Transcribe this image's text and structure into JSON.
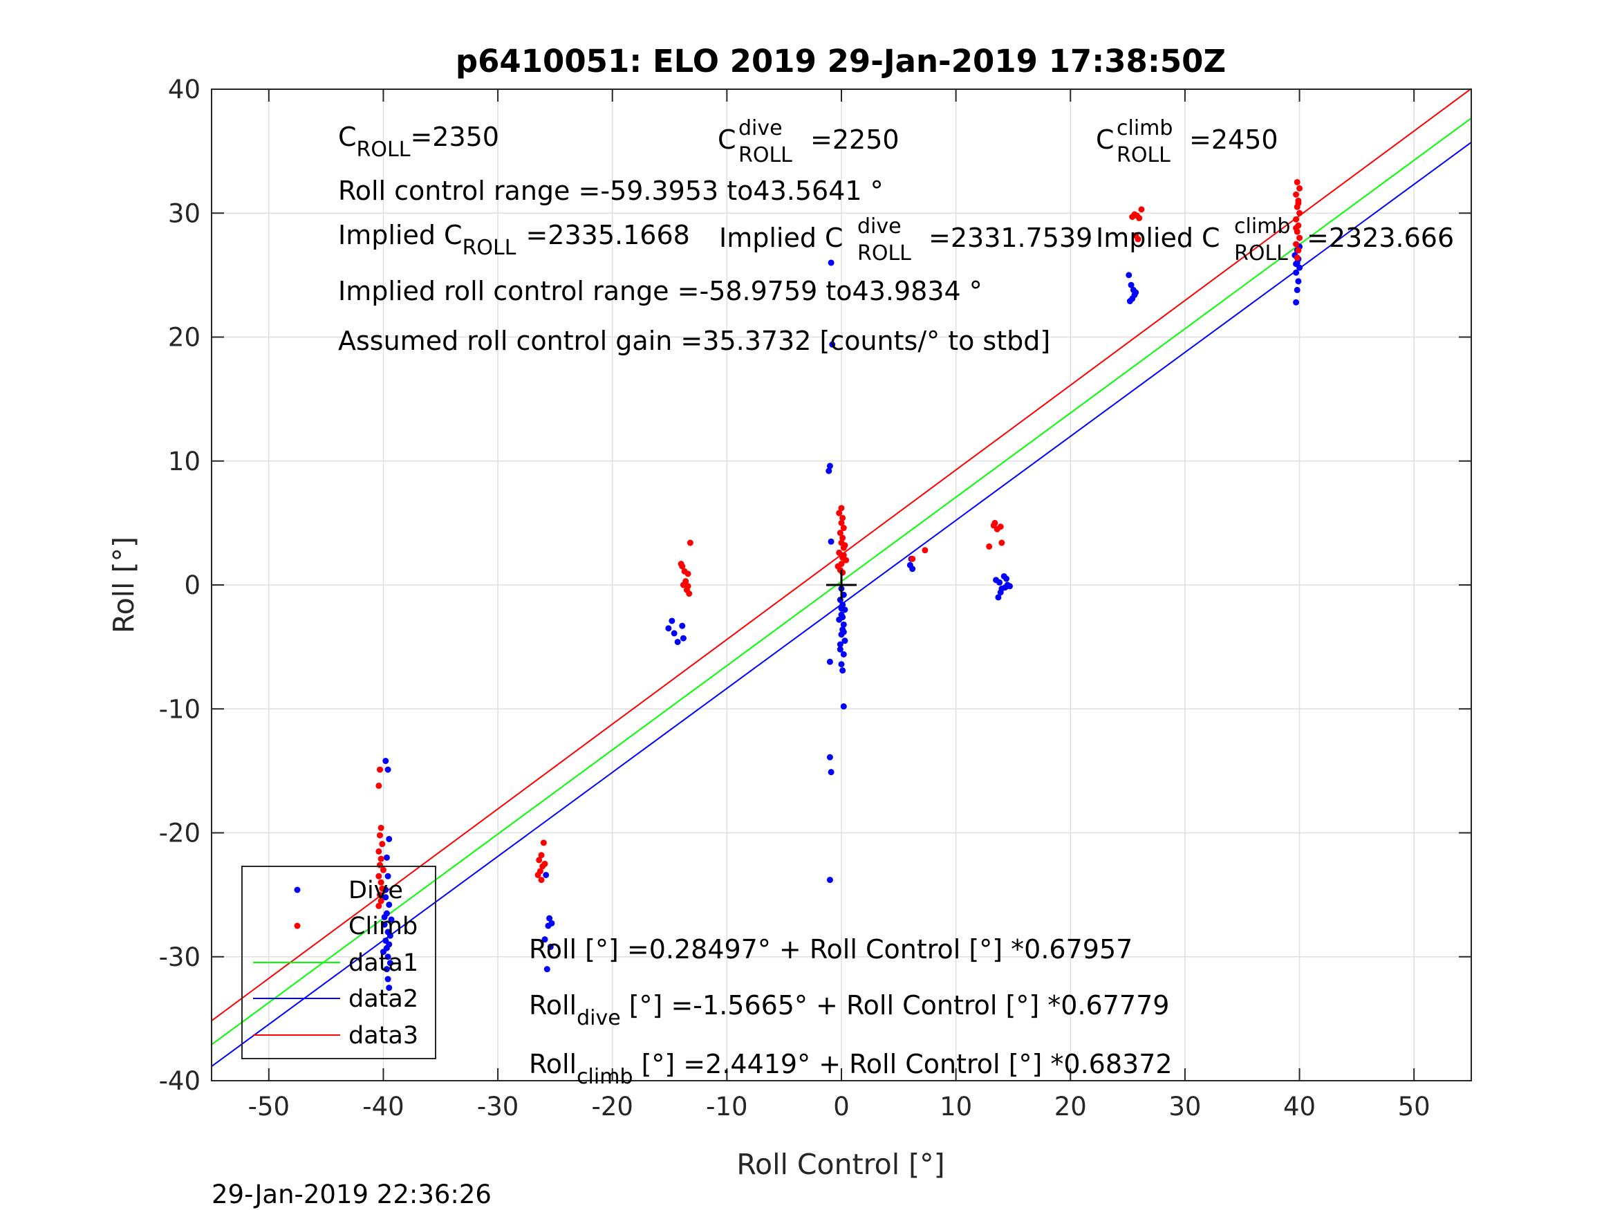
{
  "chart_data": {
    "type": "scatter",
    "title": "p6410051: ELO 2019 29-Jan-2019 17:38:50Z",
    "xlabel": "Roll Control [°]",
    "ylabel": "Roll [°]",
    "xlim": [
      -55,
      55
    ],
    "ylim": [
      -40,
      40
    ],
    "xticks": [
      -50,
      -40,
      -30,
      -20,
      -10,
      0,
      10,
      20,
      30,
      40,
      50
    ],
    "yticks": [
      -40,
      -30,
      -20,
      -10,
      0,
      10,
      20,
      30,
      40
    ],
    "grid": true,
    "legend_position": "bottom-left",
    "legend": [
      "Dive",
      "Climb",
      "data1",
      "data2",
      "data3"
    ],
    "colors": {
      "dive": "#0000ff",
      "climb": "#ff0000",
      "data1": "#00ff00",
      "data2": "#0000ff",
      "data3": "#ff0000",
      "center_marker": "#000000"
    },
    "series": [
      {
        "name": "Dive",
        "kind": "points",
        "color": "#0000ff",
        "points": [
          [
            -39.8,
            -14.2
          ],
          [
            -39.6,
            -14.9
          ],
          [
            -39.5,
            -20.5
          ],
          [
            -39.7,
            -22.0
          ],
          [
            -39.6,
            -23.5
          ],
          [
            -39.8,
            -24.6
          ],
          [
            -39.5,
            -25.8
          ],
          [
            -39.7,
            -26.5
          ],
          [
            -39.9,
            -27.4
          ],
          [
            -39.6,
            -28.0
          ],
          [
            -39.4,
            -28.3
          ],
          [
            -39.8,
            -28.7
          ],
          [
            -39.5,
            -29.0
          ],
          [
            -39.7,
            -29.3
          ],
          [
            -40.0,
            -29.6
          ],
          [
            -39.6,
            -30.0
          ],
          [
            -39.4,
            -30.5
          ],
          [
            -39.7,
            -31.0
          ],
          [
            -39.6,
            -31.8
          ],
          [
            -39.5,
            -32.5
          ],
          [
            -39.9,
            -26.8
          ],
          [
            -39.3,
            -27.0
          ],
          [
            -39.8,
            -25.2
          ],
          [
            -25.8,
            -23.4
          ],
          [
            -25.5,
            -26.9
          ],
          [
            -25.3,
            -27.3
          ],
          [
            -25.6,
            -27.5
          ],
          [
            -25.9,
            -28.6
          ],
          [
            -25.4,
            -29.2
          ],
          [
            -25.7,
            -31.0
          ],
          [
            -14.8,
            -2.9
          ],
          [
            -15.1,
            -3.5
          ],
          [
            -14.6,
            -3.9
          ],
          [
            -13.9,
            -3.3
          ],
          [
            -14.3,
            -4.6
          ],
          [
            -13.8,
            -4.3
          ],
          [
            -0.9,
            26.0
          ],
          [
            -0.8,
            19.4
          ],
          [
            -1.0,
            9.6
          ],
          [
            -1.1,
            9.2
          ],
          [
            -0.9,
            3.5
          ],
          [
            0.0,
            -0.3
          ],
          [
            0.2,
            -0.8
          ],
          [
            -0.1,
            -1.2
          ],
          [
            0.1,
            -1.6
          ],
          [
            0.3,
            -2.0
          ],
          [
            0.0,
            -2.4
          ],
          [
            -0.2,
            -2.8
          ],
          [
            0.2,
            -3.2
          ],
          [
            0.1,
            -3.6
          ],
          [
            0.0,
            -4.0
          ],
          [
            0.3,
            -4.5
          ],
          [
            -0.1,
            -5.2
          ],
          [
            0.2,
            -5.6
          ],
          [
            0.0,
            -6.4
          ],
          [
            -1.0,
            -6.2
          ],
          [
            0.1,
            -6.9
          ],
          [
            0.2,
            -9.8
          ],
          [
            -1.0,
            -13.9
          ],
          [
            -0.9,
            -15.1
          ],
          [
            -1.0,
            -23.8
          ],
          [
            0.0,
            -1.9
          ],
          [
            0.1,
            -2.6
          ],
          [
            0.2,
            -3.8
          ],
          [
            -0.1,
            -4.8
          ],
          [
            6.0,
            1.6
          ],
          [
            6.1,
            2.1
          ],
          [
            6.2,
            1.3
          ],
          [
            13.5,
            0.4
          ],
          [
            13.8,
            0.2
          ],
          [
            14.2,
            0.7
          ],
          [
            14.0,
            -0.3
          ],
          [
            14.5,
            0.0
          ],
          [
            13.9,
            -0.6
          ],
          [
            14.3,
            -0.2
          ],
          [
            14.7,
            -0.1
          ],
          [
            13.7,
            -1.0
          ],
          [
            14.4,
            0.5
          ],
          [
            25.1,
            25.0
          ],
          [
            25.3,
            24.2
          ],
          [
            25.5,
            23.8
          ],
          [
            25.6,
            23.4
          ],
          [
            25.4,
            23.1
          ],
          [
            25.7,
            23.6
          ],
          [
            25.2,
            22.9
          ],
          [
            39.7,
            22.8
          ],
          [
            39.8,
            23.8
          ],
          [
            39.9,
            24.5
          ],
          [
            39.7,
            25.2
          ],
          [
            40.0,
            25.6
          ],
          [
            39.8,
            26.0
          ],
          [
            39.9,
            26.3
          ],
          [
            39.6,
            26.6
          ],
          [
            39.8,
            27.0
          ],
          [
            40.0,
            27.3
          ],
          [
            39.7,
            25.9
          ]
        ]
      },
      {
        "name": "Climb",
        "kind": "points",
        "color": "#ff0000",
        "points": [
          [
            -40.3,
            -14.9
          ],
          [
            -40.4,
            -16.2
          ],
          [
            -40.2,
            -19.6
          ],
          [
            -40.3,
            -20.2
          ],
          [
            -40.1,
            -20.9
          ],
          [
            -40.4,
            -21.5
          ],
          [
            -40.2,
            -22.1
          ],
          [
            -40.3,
            -22.6
          ],
          [
            -40.0,
            -23.0
          ],
          [
            -40.4,
            -23.5
          ],
          [
            -40.2,
            -24.0
          ],
          [
            -40.1,
            -24.5
          ],
          [
            -40.3,
            -25.0
          ],
          [
            -40.2,
            -25.5
          ],
          [
            -40.4,
            -25.9
          ],
          [
            -26.0,
            -20.8
          ],
          [
            -26.2,
            -21.8
          ],
          [
            -26.4,
            -22.2
          ],
          [
            -26.1,
            -22.7
          ],
          [
            -26.3,
            -23.1
          ],
          [
            -26.5,
            -23.4
          ],
          [
            -26.2,
            -23.8
          ],
          [
            -25.9,
            -22.5
          ],
          [
            -13.9,
            1.5
          ],
          [
            -13.7,
            1.1
          ],
          [
            -13.4,
            0.9
          ],
          [
            -13.2,
            3.4
          ],
          [
            -13.8,
            0.0
          ],
          [
            -13.5,
            -0.4
          ],
          [
            -13.3,
            -0.7
          ],
          [
            -13.6,
            0.3
          ],
          [
            -13.4,
            -0.1
          ],
          [
            -14.0,
            1.7
          ],
          [
            -0.1,
            1.2
          ],
          [
            0.0,
            1.7
          ],
          [
            0.1,
            2.2
          ],
          [
            -0.2,
            2.6
          ],
          [
            0.2,
            3.0
          ],
          [
            0.0,
            3.4
          ],
          [
            0.1,
            3.8
          ],
          [
            -0.1,
            4.2
          ],
          [
            0.2,
            4.6
          ],
          [
            0.0,
            5.0
          ],
          [
            0.1,
            5.4
          ],
          [
            -0.2,
            5.8
          ],
          [
            0.0,
            6.2
          ],
          [
            0.2,
            2.4
          ],
          [
            0.4,
            2.0
          ],
          [
            0.3,
            3.2
          ],
          [
            -0.3,
            1.5
          ],
          [
            0.1,
            1.0
          ],
          [
            6.2,
            2.1
          ],
          [
            7.3,
            2.8
          ],
          [
            12.9,
            3.1
          ],
          [
            13.3,
            4.8
          ],
          [
            13.6,
            4.5
          ],
          [
            13.9,
            4.7
          ],
          [
            13.4,
            5.0
          ],
          [
            14.0,
            3.4
          ],
          [
            25.4,
            29.7
          ],
          [
            25.6,
            29.9
          ],
          [
            25.8,
            29.8
          ],
          [
            26.0,
            29.6
          ],
          [
            26.2,
            30.3
          ],
          [
            25.9,
            27.9
          ],
          [
            25.7,
            28.2
          ],
          [
            39.8,
            26.4
          ],
          [
            39.9,
            27.0
          ],
          [
            39.7,
            27.5
          ],
          [
            40.0,
            28.0
          ],
          [
            39.8,
            28.5
          ],
          [
            39.9,
            29.0
          ],
          [
            39.7,
            29.5
          ],
          [
            40.0,
            30.0
          ],
          [
            39.8,
            30.5
          ],
          [
            39.9,
            31.0
          ],
          [
            39.7,
            31.5
          ],
          [
            40.0,
            32.0
          ],
          [
            39.8,
            32.5
          ],
          [
            39.9,
            30.8
          ],
          [
            39.7,
            28.8
          ]
        ]
      },
      {
        "name": "data1",
        "kind": "line",
        "color": "#00ff00",
        "intercept": 0.28497,
        "slope": 0.67957
      },
      {
        "name": "data2",
        "kind": "line",
        "color": "#0000ff",
        "intercept": -1.5665,
        "slope": 0.67779
      },
      {
        "name": "data3",
        "kind": "line",
        "color": "#ff0000",
        "intercept": 2.4419,
        "slope": 0.68372
      }
    ],
    "center_marker": [
      0,
      0
    ],
    "annotations": {
      "c_roll": {
        "main": "C",
        "sub": "ROLL",
        "value": "=2350"
      },
      "c_roll_dive": {
        "main": "C",
        "sup": "dive",
        "sub": "ROLL",
        "value": "=2250"
      },
      "c_roll_climb": {
        "main": "C",
        "sup": "climb",
        "sub": "ROLL",
        "value": "=2450"
      },
      "roll_control_range": "Roll control range =-59.3953 to43.5641 °",
      "implied_c_roll": {
        "main": "Implied C",
        "sub": "ROLL",
        "value": "=2335.1668"
      },
      "implied_c_roll_dive": {
        "main": "Implied C",
        "sup": "dive",
        "sub": "ROLL",
        "value": "=2331.7539"
      },
      "implied_c_roll_climb": {
        "main": "Implied C",
        "sup": "climb",
        "sub": "ROLL",
        "value": "=2323.666"
      },
      "implied_roll_control_range": "Implied roll control range =-58.9759 to43.9834 °",
      "assumed_gain": "Assumed roll control gain =35.3732 [counts/° to stbd]",
      "fit_all": "Roll [°] =0.28497° + Roll Control [°] *0.67957",
      "fit_dive": {
        "main": "Roll",
        "sub": "dive",
        "value": " [°] =-1.5665° + Roll Control [°] *0.67779"
      },
      "fit_climb": {
        "main": "Roll",
        "sub": "climb",
        "value": " [°] =2.4419° + Roll Control [°] *0.68372"
      }
    },
    "footer_timestamp": "29-Jan-2019 22:36:26"
  }
}
